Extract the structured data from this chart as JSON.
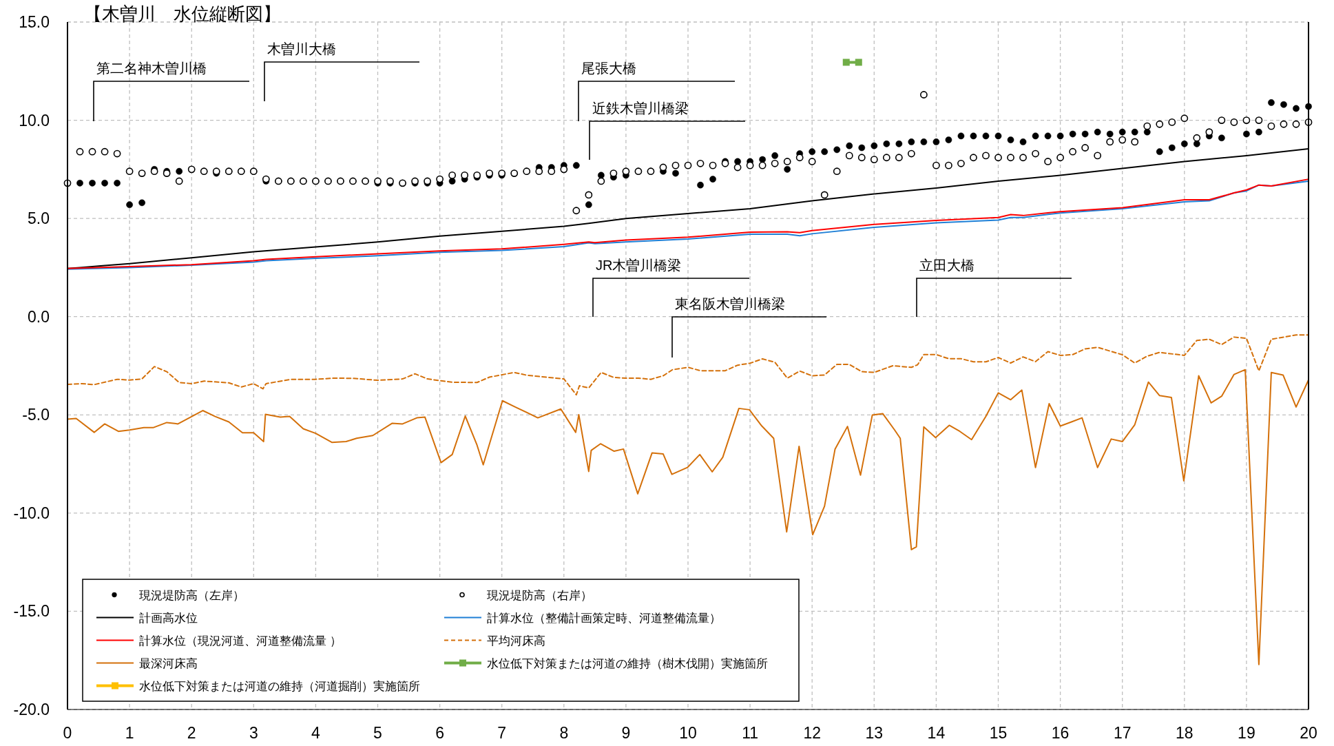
{
  "chart_data": {
    "type": "line",
    "title": "【木曽川　水位縦断図】",
    "xlim": [
      0,
      20
    ],
    "xticks": [
      0,
      1,
      2,
      3,
      4,
      5,
      6,
      7,
      8,
      9,
      10,
      11,
      12,
      13,
      14,
      15,
      16,
      17,
      18,
      19,
      20
    ],
    "ylim": [
      -20,
      15
    ],
    "yticks": [
      {
        "value": -20,
        "label": "-20.0"
      },
      {
        "value": -15,
        "label": "-15.0"
      },
      {
        "value": -10,
        "label": "-10.0"
      },
      {
        "value": -5,
        "label": "-5.0"
      },
      {
        "value": 0,
        "label": "0.0"
      },
      {
        "value": 5,
        "label": "5.0"
      },
      {
        "value": 10,
        "label": "10.0"
      },
      {
        "value": 15,
        "label": "15.0"
      }
    ],
    "grid": true,
    "legend": "bottom left",
    "annotations": [
      "第二名神木曽川橋",
      "木曽川大橋",
      "尾張大橋",
      "近鉄木曽川橋梁",
      "JR木曽川橋梁",
      "東名阪木曽川橋梁",
      "立田大橋"
    ],
    "series": [
      {
        "name": "現況堤防高（左岸）",
        "type": "scatter",
        "marker": "circle",
        "color": "#000000",
        "x": [
          0.2,
          0.4,
          0.6,
          0.8,
          1.0,
          1.2,
          1.4,
          1.6,
          1.8,
          2.0,
          2.2,
          2.4,
          2.6,
          2.8,
          3.0,
          3.2,
          3.4,
          3.6,
          3.8,
          4.0,
          4.2,
          4.4,
          4.6,
          4.8,
          5.0,
          5.2,
          5.4,
          5.6,
          5.8,
          6.0,
          6.2,
          6.4,
          6.6,
          6.8,
          7.0,
          7.2,
          7.4,
          7.6,
          7.8,
          8.0,
          8.2,
          8.4,
          8.6,
          8.8,
          9.0,
          9.2,
          9.4,
          9.6,
          9.8,
          10.0,
          10.2,
          10.4,
          10.6,
          10.8,
          11.0,
          11.2,
          11.4,
          11.6,
          11.8,
          12.0,
          12.2,
          12.4,
          12.6,
          12.8,
          13.0,
          13.2,
          13.4,
          13.6,
          13.8,
          14.0,
          14.2,
          14.4,
          14.6,
          14.8,
          15.0,
          15.2,
          15.4,
          15.6,
          15.8,
          16.0,
          16.2,
          16.4,
          16.6,
          16.8,
          17.0,
          17.2,
          17.4,
          17.6,
          17.8,
          18.0,
          18.2,
          18.4,
          18.6,
          18.8,
          19.0,
          19.2,
          19.4,
          19.6,
          19.8,
          20.0
        ],
        "values": [
          6.8,
          6.8,
          6.8,
          6.8,
          5.7,
          5.8,
          7.5,
          7.4,
          7.4,
          7.5,
          7.4,
          7.3,
          7.4,
          7.4,
          7.4,
          6.9,
          6.9,
          6.9,
          6.9,
          6.9,
          6.9,
          6.9,
          6.9,
          6.9,
          6.8,
          6.8,
          6.8,
          6.8,
          6.8,
          6.8,
          6.9,
          7.0,
          7.1,
          7.2,
          7.2,
          7.3,
          7.4,
          7.6,
          7.6,
          7.7,
          7.7,
          5.7,
          7.2,
          7.1,
          7.2,
          7.4,
          7.4,
          7.4,
          7.3,
          null,
          6.7,
          7.0,
          7.9,
          7.9,
          7.9,
          8.0,
          8.2,
          7.5,
          8.3,
          8.4,
          8.4,
          8.5,
          8.7,
          8.6,
          8.7,
          8.8,
          8.8,
          8.9,
          8.9,
          8.9,
          9.0,
          9.2,
          9.2,
          9.2,
          9.2,
          9.0,
          8.9,
          9.2,
          9.2,
          9.2,
          9.3,
          9.3,
          9.4,
          9.3,
          9.4,
          9.4,
          9.4,
          8.4,
          8.6,
          8.8,
          8.8,
          9.2,
          9.1,
          9.9,
          9.3,
          9.4,
          10.9,
          10.8,
          10.6,
          10.7
        ]
      },
      {
        "name": "現況堤防高（右岸）",
        "type": "scatter",
        "marker": "circle",
        "color": "#000000",
        "x": [
          0.0,
          0.2,
          0.4,
          0.6,
          0.8,
          1.0,
          1.2,
          1.4,
          1.6,
          1.8,
          2.0,
          2.2,
          2.4,
          2.6,
          2.8,
          3.0,
          3.2,
          3.4,
          3.6,
          3.8,
          4.0,
          4.2,
          4.4,
          4.6,
          4.8,
          5.0,
          5.2,
          5.4,
          5.6,
          5.8,
          6.0,
          6.2,
          6.4,
          6.6,
          6.8,
          7.0,
          7.2,
          7.4,
          7.6,
          7.8,
          8.0,
          8.2,
          8.4,
          8.6,
          8.8,
          9.0,
          9.2,
          9.4,
          9.6,
          9.8,
          10.0,
          10.2,
          10.4,
          10.6,
          10.8,
          11.0,
          11.2,
          11.4,
          11.6,
          11.8,
          12.0,
          12.2,
          12.4,
          12.6,
          12.8,
          13.0,
          13.2,
          13.4,
          13.6,
          13.8,
          14.0,
          14.2,
          14.4,
          14.6,
          14.8,
          15.0,
          15.2,
          15.4,
          15.6,
          15.8,
          16.0,
          16.2,
          16.4,
          16.6,
          16.8,
          17.0,
          17.2,
          17.4,
          17.6,
          17.8,
          18.0,
          18.2,
          18.4,
          18.6,
          18.8,
          19.0,
          19.2,
          19.4,
          19.6,
          19.8,
          20.0
        ],
        "values": [
          6.8,
          8.4,
          8.4,
          8.4,
          8.3,
          7.4,
          7.3,
          7.4,
          7.3,
          6.9,
          7.5,
          7.4,
          7.4,
          7.4,
          7.4,
          7.4,
          7.0,
          6.9,
          6.9,
          6.9,
          6.9,
          6.9,
          6.9,
          6.9,
          6.9,
          6.9,
          6.9,
          6.8,
          6.9,
          6.9,
          7.0,
          7.2,
          7.2,
          7.2,
          7.3,
          7.3,
          7.3,
          7.4,
          7.4,
          7.4,
          7.5,
          5.4,
          6.2,
          6.9,
          7.3,
          7.4,
          7.4,
          7.4,
          7.6,
          7.7,
          7.7,
          7.8,
          7.7,
          7.8,
          7.6,
          7.7,
          7.7,
          7.8,
          7.9,
          8.1,
          7.9,
          6.2,
          7.4,
          8.2,
          8.1,
          8.0,
          8.1,
          8.1,
          8.3,
          11.3,
          7.7,
          7.7,
          7.8,
          8.1,
          8.2,
          8.1,
          8.1,
          8.1,
          8.3,
          7.9,
          8.1,
          8.4,
          8.6,
          8.2,
          8.9,
          9.0,
          8.9,
          9.7,
          9.8,
          9.9,
          10.1,
          9.1,
          9.4,
          10.0,
          9.9,
          10.0,
          10.0,
          9.7,
          9.8,
          9.8,
          9.9
        ]
      },
      {
        "name": "計画高水位",
        "type": "line",
        "color": "#000000",
        "x": [
          0,
          0.2,
          0.6,
          1,
          2,
          3,
          4,
          5,
          6,
          7,
          8,
          8.4,
          9,
          10,
          11,
          12,
          13,
          14,
          15,
          16,
          17,
          18,
          19,
          20
        ],
        "values": [
          2.45,
          2.5,
          2.6,
          2.7,
          3.0,
          3.3,
          3.55,
          3.8,
          4.1,
          4.35,
          4.6,
          4.75,
          5.0,
          5.25,
          5.5,
          5.9,
          6.25,
          6.55,
          6.9,
          7.2,
          7.55,
          7.9,
          8.2,
          8.55
        ]
      },
      {
        "name": "計算水位（整備計画策定時、河道整備流量）",
        "type": "line",
        "color": "#1f7fd6",
        "x": [
          0,
          1,
          2,
          3,
          3.2,
          4,
          5,
          6,
          7,
          8,
          8.4,
          8.5,
          9,
          10,
          11,
          11.6,
          11.8,
          12,
          13,
          14,
          15,
          15.2,
          15.4,
          16,
          17,
          18,
          18.4,
          18.8,
          19,
          19.2,
          19.4,
          20
        ],
        "values": [
          2.42,
          2.5,
          2.62,
          2.78,
          2.85,
          2.97,
          3.1,
          3.28,
          3.37,
          3.57,
          3.76,
          3.72,
          3.8,
          3.95,
          4.2,
          4.2,
          4.12,
          4.22,
          4.55,
          4.78,
          4.92,
          5.05,
          5.05,
          5.28,
          5.5,
          5.85,
          5.9,
          6.3,
          6.4,
          6.7,
          6.65,
          6.9
        ]
      },
      {
        "name": "計算水位（現況河道、河道整備流量 ）",
        "type": "line",
        "color": "#ff0000",
        "x": [
          0,
          1,
          2,
          3,
          3.2,
          4,
          5,
          6,
          7,
          8,
          8.4,
          8.5,
          9,
          10,
          11,
          11.6,
          11.8,
          12,
          13,
          14,
          15,
          15.2,
          15.4,
          16,
          17,
          18,
          18.4,
          18.8,
          19,
          19.2,
          19.4,
          20
        ],
        "values": [
          2.45,
          2.55,
          2.65,
          2.85,
          2.92,
          3.05,
          3.2,
          3.35,
          3.45,
          3.68,
          3.8,
          3.77,
          3.9,
          4.05,
          4.3,
          4.32,
          4.28,
          4.38,
          4.7,
          4.9,
          5.05,
          5.2,
          5.15,
          5.35,
          5.55,
          5.95,
          5.95,
          6.3,
          6.45,
          6.7,
          6.65,
          7.0
        ]
      },
      {
        "name": "平均河床高",
        "type": "line",
        "line_style": "dashed",
        "color": "#d4700a",
        "x": [
          0,
          0.23,
          0.43,
          0.8,
          1.0,
          1.2,
          1.4,
          1.6,
          1.8,
          2.0,
          2.2,
          2.6,
          2.8,
          3.0,
          3.15,
          3.2,
          3.6,
          4.0,
          4.3,
          4.6,
          5.0,
          5.4,
          5.6,
          5.8,
          6.2,
          6.6,
          6.8,
          7.2,
          7.4,
          8.0,
          8.2,
          8.25,
          8.4,
          8.6,
          8.8,
          9.0,
          9.2,
          9.4,
          9.6,
          9.75,
          10.0,
          10.2,
          10.6,
          10.8,
          11.0,
          11.2,
          11.4,
          11.6,
          11.8,
          12.0,
          12.2,
          12.4,
          12.6,
          12.8,
          13.0,
          13.3,
          13.6,
          13.7,
          13.8,
          14.0,
          14.2,
          14.4,
          14.6,
          14.8,
          15.0,
          15.2,
          15.4,
          15.6,
          15.8,
          16.0,
          16.2,
          16.4,
          16.6,
          17.0,
          17.2,
          17.4,
          17.6,
          18.0,
          18.2,
          18.4,
          18.6,
          18.8,
          19.0,
          19.2,
          19.4,
          19.8,
          20.0
        ],
        "values": [
          -3.45,
          -3.41,
          -3.46,
          -3.19,
          -3.23,
          -3.17,
          -2.54,
          -2.8,
          -3.35,
          -3.41,
          -3.28,
          -3.37,
          -3.58,
          -3.41,
          -3.67,
          -3.41,
          -3.19,
          -3.19,
          -3.13,
          -3.14,
          -3.24,
          -3.17,
          -2.91,
          -3.17,
          -3.34,
          -3.35,
          -3.08,
          -2.84,
          -2.98,
          -3.17,
          -3.98,
          -3.52,
          -3.63,
          -2.84,
          -3.09,
          -3.13,
          -3.13,
          -3.19,
          -3.01,
          -2.7,
          -2.58,
          -2.75,
          -2.75,
          -2.47,
          -2.37,
          -2.15,
          -2.32,
          -3.13,
          -2.77,
          -3.01,
          -2.97,
          -2.43,
          -2.43,
          -2.8,
          -2.84,
          -2.5,
          -2.58,
          -2.45,
          -1.93,
          -1.93,
          -2.14,
          -2.14,
          -2.3,
          -2.3,
          -2.08,
          -2.36,
          -2.05,
          -2.29,
          -1.78,
          -1.97,
          -1.93,
          -1.64,
          -1.56,
          -1.94,
          -2.36,
          -2.01,
          -1.82,
          -1.97,
          -1.21,
          -1.15,
          -1.42,
          -1.04,
          -1.1,
          -2.76,
          -1.15,
          -0.93,
          -0.93
        ]
      },
      {
        "name": "最深河床高",
        "type": "line",
        "color": "#d4700a",
        "x": [
          0,
          0.14,
          0.43,
          0.6,
          0.82,
          1.0,
          1.23,
          1.38,
          1.6,
          1.78,
          2.18,
          2.38,
          2.6,
          2.82,
          3.0,
          3.16,
          3.19,
          3.43,
          3.58,
          3.8,
          4.0,
          4.26,
          4.49,
          4.66,
          4.92,
          5.23,
          5.4,
          5.63,
          5.76,
          6.02,
          6.2,
          6.41,
          6.6,
          6.7,
          7.01,
          7.21,
          7.58,
          7.95,
          8.19,
          8.24,
          8.4,
          8.44,
          8.59,
          8.81,
          8.96,
          9.19,
          9.42,
          9.6,
          9.74,
          9.99,
          10.19,
          10.39,
          10.56,
          10.82,
          10.99,
          11.19,
          11.38,
          11.59,
          11.79,
          12.01,
          12.2,
          12.37,
          12.57,
          12.78,
          12.97,
          13.14,
          13.33,
          13.42,
          13.6,
          13.68,
          13.8,
          13.99,
          14.21,
          14.38,
          14.57,
          14.8,
          15.0,
          15.2,
          15.38,
          15.6,
          15.82,
          16.0,
          16.18,
          16.35,
          16.6,
          16.82,
          17.0,
          17.2,
          17.42,
          17.6,
          17.79,
          17.99,
          18.23,
          18.43,
          18.6,
          18.8,
          18.98,
          19.2,
          19.4,
          19.59,
          19.8,
          20.0
        ],
        "values": [
          -5.22,
          -5.18,
          -5.89,
          -5.46,
          -5.84,
          -5.77,
          -5.65,
          -5.65,
          -5.39,
          -5.46,
          -4.78,
          -5.08,
          -5.36,
          -5.91,
          -5.91,
          -6.36,
          -4.97,
          -5.11,
          -5.08,
          -5.71,
          -5.94,
          -6.4,
          -6.36,
          -6.19,
          -6.05,
          -5.43,
          -5.46,
          -5.15,
          -5.11,
          -7.43,
          -7.02,
          -5.06,
          -6.54,
          -7.54,
          -4.28,
          -4.59,
          -5.15,
          -4.7,
          -5.89,
          -4.99,
          -7.88,
          -6.81,
          -6.47,
          -6.85,
          -6.74,
          -9.02,
          -6.94,
          -6.99,
          -8.03,
          -7.68,
          -7.02,
          -7.9,
          -7.16,
          -4.67,
          -4.74,
          -5.57,
          -6.19,
          -10.96,
          -6.6,
          -11.1,
          -9.65,
          -6.74,
          -5.59,
          -8.07,
          -5.01,
          -4.94,
          -5.77,
          -6.19,
          -11.86,
          -11.72,
          -5.61,
          -6.16,
          -5.53,
          -5.84,
          -6.26,
          -5.08,
          -3.88,
          -4.23,
          -3.74,
          -7.68,
          -4.43,
          -5.57,
          -5.36,
          -5.15,
          -7.68,
          -6.23,
          -6.36,
          -5.5,
          -3.33,
          -4.02,
          -4.11,
          -8.36,
          -3.01,
          -4.39,
          -4.05,
          -2.94,
          -2.7,
          -17.71,
          -2.84,
          -2.97,
          -4.6,
          -3.22
        ]
      },
      {
        "name": "水位低下対策または河道の維持（樹木伐開）実施箇所",
        "type": "line",
        "marker": "square",
        "color": "#70ad47",
        "x": [
          12.55,
          12.75
        ],
        "values": [
          12.95,
          12.95
        ]
      },
      {
        "name": "水位低下対策または河道の維持（河道掘削）実施箇所",
        "type": "line",
        "marker": "square",
        "color": "#ffc000"
      }
    ]
  }
}
